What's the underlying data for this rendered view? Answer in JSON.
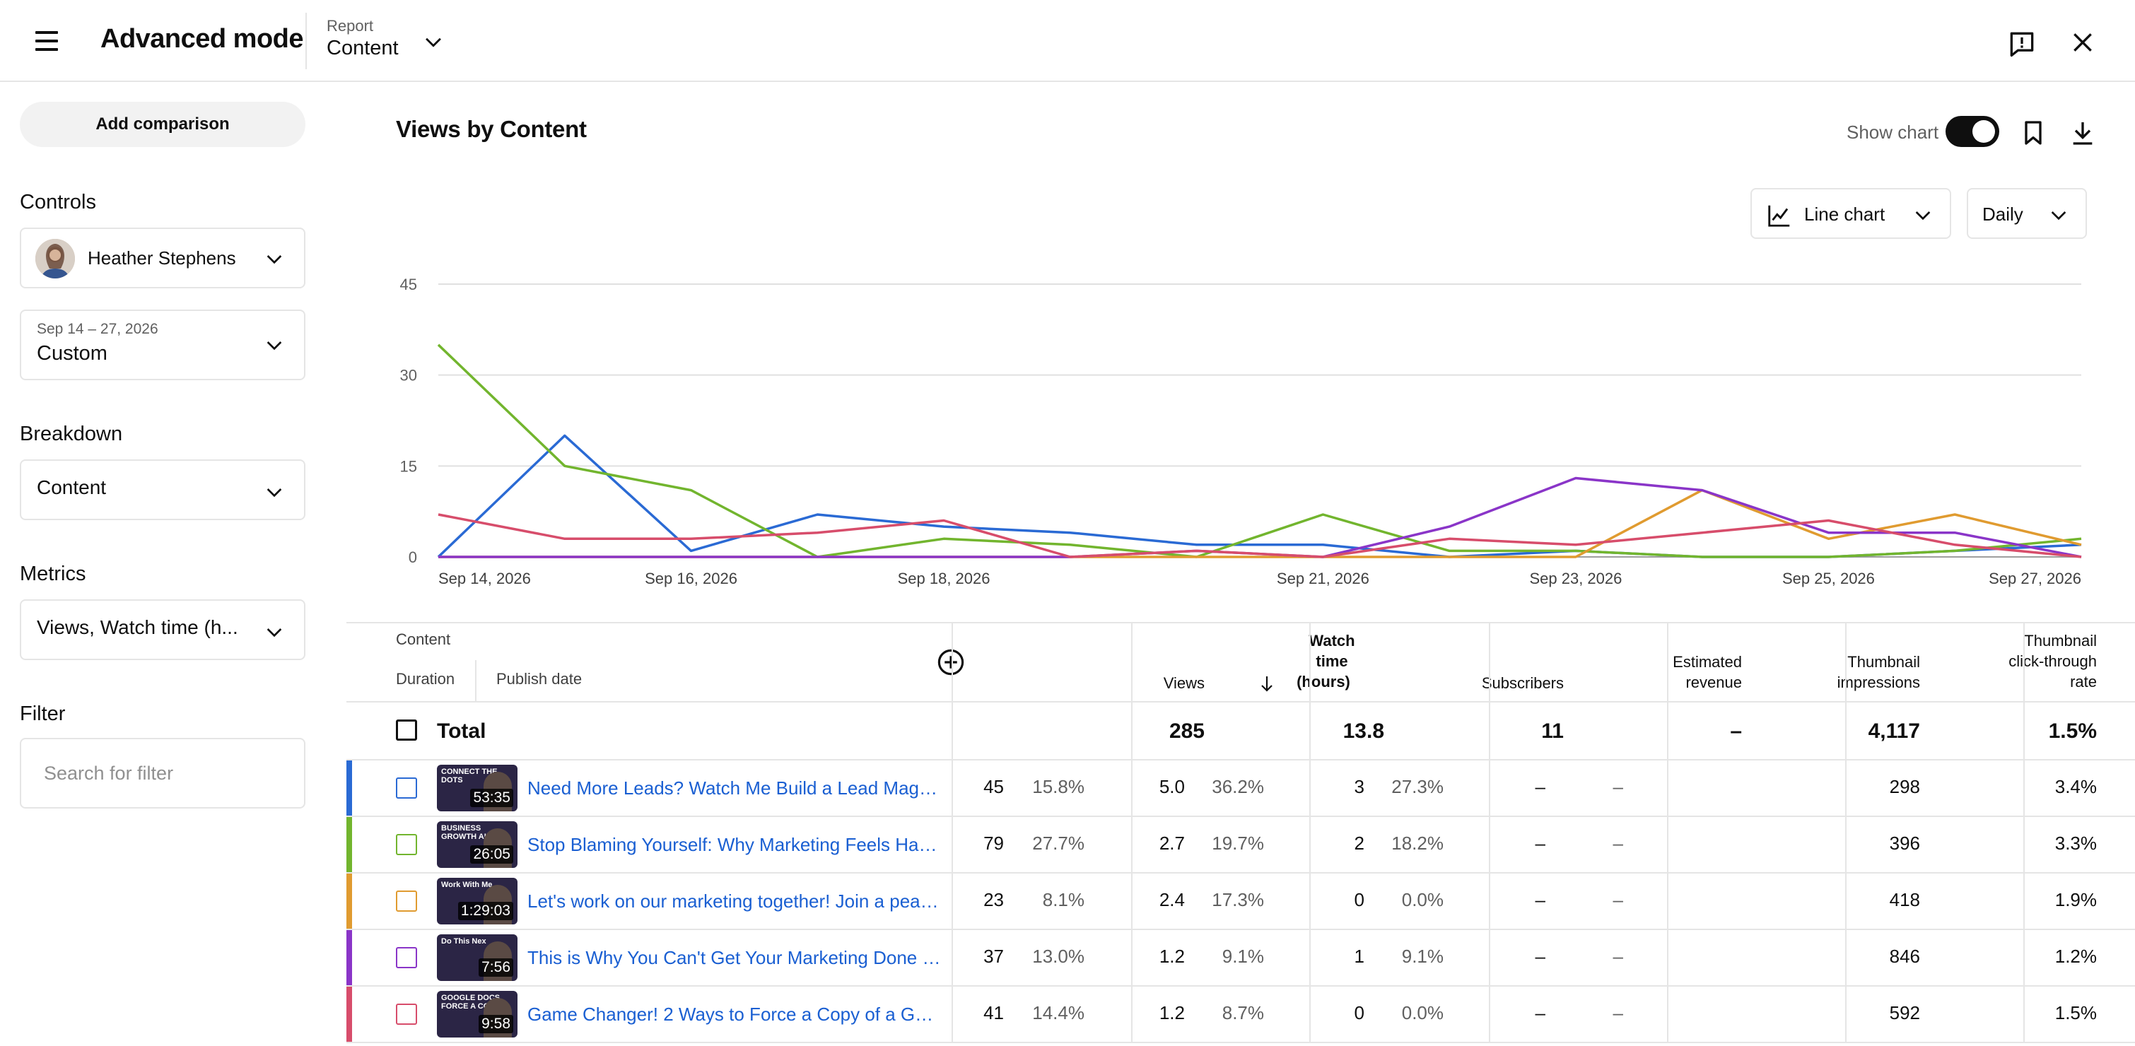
{
  "header": {
    "menu_icon": "menu-icon",
    "title": "Advanced mode",
    "report_label": "Report",
    "report_value": "Content",
    "feedback_icon": "feedback-icon",
    "close_icon": "close-icon"
  },
  "sidebar": {
    "add_comparison": "Add comparison",
    "controls_label": "Controls",
    "channel_name": "Heather Stephens",
    "date_range_sub": "Sep 14 – 27, 2026",
    "date_range_value": "Custom",
    "breakdown_label": "Breakdown",
    "breakdown_value": "Content",
    "metrics_label": "Metrics",
    "metrics_value": "Views, Watch time (h...",
    "filter_label": "Filter",
    "filter_placeholder": "Search for filter"
  },
  "main": {
    "title": "Views by Content",
    "show_chart_label": "Show chart",
    "show_chart_on": true,
    "chart_type_label": "Line chart",
    "interval_label": "Daily"
  },
  "chart_data": {
    "type": "line",
    "x": [
      "Sep 14, 2026",
      "Sep 15, 2026",
      "Sep 16, 2026",
      "Sep 17, 2026",
      "Sep 18, 2026",
      "Sep 19, 2026",
      "Sep 20, 2026",
      "Sep 21, 2026",
      "Sep 22, 2026",
      "Sep 23, 2026",
      "Sep 24, 2026",
      "Sep 25, 2026",
      "Sep 26, 2026",
      "Sep 27, 2026"
    ],
    "tick_labels": [
      "Sep 14, 2026",
      "Sep 16, 2026",
      "Sep 18, 2026",
      "Sep 21, 2026",
      "Sep 23, 2026",
      "Sep 25, 2026",
      "Sep 27, 2026"
    ],
    "tick_indices": [
      0,
      2,
      4,
      7,
      9,
      11,
      13
    ],
    "ylim": [
      0,
      45
    ],
    "yticks": [
      0,
      15,
      30,
      45
    ],
    "grid": true,
    "series": [
      {
        "color": "#2a6ad4",
        "values": [
          0,
          20,
          1,
          7,
          5,
          4,
          2,
          2,
          0,
          1,
          0,
          0,
          1,
          2
        ]
      },
      {
        "color": "#72b52e",
        "values": [
          35,
          15,
          11,
          0,
          3,
          2,
          0,
          7,
          1,
          1,
          0,
          0,
          1,
          3
        ]
      },
      {
        "color": "#e09b30",
        "values": [
          0,
          0,
          0,
          0,
          0,
          0,
          0,
          0,
          0,
          0,
          11,
          3,
          7,
          2
        ]
      },
      {
        "color": "#8a35c8",
        "values": [
          0,
          0,
          0,
          0,
          0,
          0,
          1,
          0,
          5,
          13,
          11,
          4,
          4,
          0
        ]
      },
      {
        "color": "#d74d6b",
        "values": [
          7,
          3,
          3,
          4,
          6,
          0,
          1,
          0,
          3,
          2,
          4,
          6,
          2,
          0
        ]
      }
    ]
  },
  "table": {
    "col_content": "Content",
    "col_duration": "Duration",
    "col_publish_date": "Publish date",
    "add_column_icon": "add-circle-icon",
    "col_views": "Views",
    "col_watch_time": [
      "Watch",
      "time",
      "(hours)"
    ],
    "sort_icon": "arrow-down-icon",
    "col_subscribers": "Subscribers",
    "col_revenue": [
      "Estimated",
      "revenue"
    ],
    "col_impressions": [
      "Thumbnail",
      "impressions"
    ],
    "col_ctr": [
      "Thumbnail",
      "click-through",
      "rate"
    ],
    "total": {
      "label": "Total",
      "views": "285",
      "watch_time": "13.8",
      "subscribers": "11",
      "revenue": "–",
      "impressions": "4,117",
      "ctr": "1.5%"
    },
    "rows": [
      {
        "color": "#2a6ad4",
        "duration": "53:35",
        "thumb_tag": "CONNECT THE DOTS",
        "title": "Need More Leads? Watch Me Build a Lead Magnet,...",
        "views": "45",
        "views_pct": "15.8%",
        "watch": "5.0",
        "watch_pct": "36.2%",
        "subs": "3",
        "subs_pct": "27.3%",
        "rev": "–",
        "rev_pct": "–",
        "impressions": "298",
        "ctr": "3.4%"
      },
      {
        "color": "#72b52e",
        "duration": "26:05",
        "thumb_tag": "BUSINESS GROWTH ALIGN",
        "title": "Stop Blaming Yourself: Why Marketing Feels Hard ...",
        "views": "79",
        "views_pct": "27.7%",
        "watch": "2.7",
        "watch_pct": "19.7%",
        "subs": "2",
        "subs_pct": "18.2%",
        "rev": "–",
        "rev_pct": "–",
        "impressions": "396",
        "ctr": "3.3%"
      },
      {
        "color": "#e09b30",
        "duration": "1:29:03",
        "thumb_tag": "Work With Me",
        "title": "Let's work on our marketing together! Join a peace...",
        "views": "23",
        "views_pct": "8.1%",
        "watch": "2.4",
        "watch_pct": "17.3%",
        "subs": "0",
        "subs_pct": "0.0%",
        "rev": "–",
        "rev_pct": "–",
        "impressions": "418",
        "ctr": "1.9%"
      },
      {
        "color": "#8a35c8",
        "duration": "7:56",
        "thumb_tag": "Do This Nex",
        "title": "This is Why You Can't Get Your Marketing Done (A...",
        "views": "37",
        "views_pct": "13.0%",
        "watch": "1.2",
        "watch_pct": "9.1%",
        "subs": "1",
        "subs_pct": "9.1%",
        "rev": "–",
        "rev_pct": "–",
        "impressions": "846",
        "ctr": "1.2%"
      },
      {
        "color": "#d74d6b",
        "duration": "9:58",
        "thumb_tag": "GOOGLE DOCS FORCE A COPY",
        "title": "Game Changer! 2 Ways to Force a Copy of a Googl...",
        "views": "41",
        "views_pct": "14.4%",
        "watch": "1.2",
        "watch_pct": "8.7%",
        "subs": "0",
        "subs_pct": "0.0%",
        "rev": "–",
        "rev_pct": "–",
        "impressions": "592",
        "ctr": "1.5%"
      }
    ]
  }
}
